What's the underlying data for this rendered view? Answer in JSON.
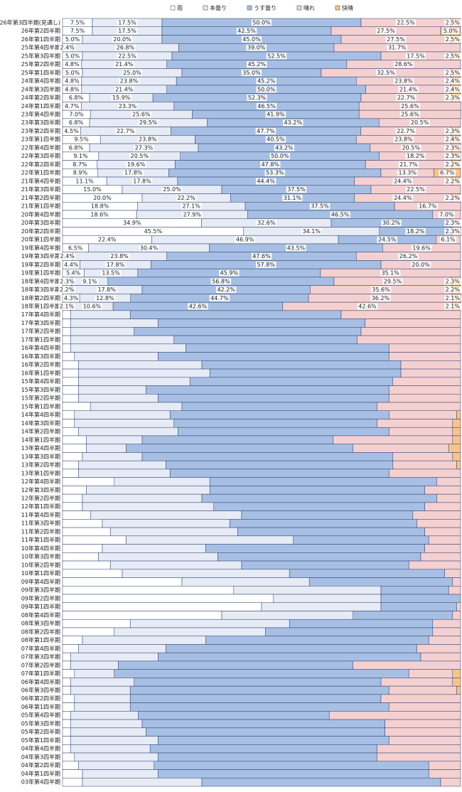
{
  "chart_data": {
    "type": "stacked-bar-horizontal",
    "categories": [
      "26年第3四半期(見通し)",
      "26年第2四半期",
      "26年第1四半期",
      "25年第4四半期",
      "25年第3四半期",
      "25年第2四半期",
      "25年第1四半期",
      "24年第4四半期",
      "24年第3四半期",
      "24年第2四半期",
      "24年第1四半期",
      "23年第4四半期",
      "23年第3四半期",
      "23年第2四半期",
      "23年第1四半期",
      "22年第4四半期",
      "22年第3四半期",
      "22年第2四半期",
      "22年第1四半期",
      "21年第4四半期",
      "21年第3四半期",
      "21年第2四半期",
      "21年第1四半期",
      "20年第4四半期",
      "20年第3四半期",
      "20年第2四半期",
      "20年第1四半期",
      "19年第4四半期",
      "19年第3四半期",
      "19年第2四半期",
      "19年第1四半期",
      "18年第4四半期",
      "18年第3四半期",
      "18年第2四半期",
      "18年第1四半期",
      "17年第4四半期",
      "17年第3四半期",
      "17年第2四半期",
      "17年第1四半期",
      "16年第4四半期",
      "16年第3四半期",
      "16年第2四半期",
      "16年第1四半期",
      "15年第4四半期",
      "15年第3四半期",
      "15年第2四半期",
      "15年第1四半期",
      "14年第4四半期",
      "14年第3四半期",
      "14年第2四半期",
      "14年第1四半期",
      "13年第4四半期",
      "13年第3四半期",
      "13年第2四半期",
      "13年第1四半期",
      "12年第4四半期",
      "12年第3四半期",
      "12年第2四半期",
      "12年第1四半期",
      "11年第4四半期",
      "11年第3四半期",
      "11年第2四半期",
      "11年第1四半期",
      "10年第4四半期",
      "10年第3四半期",
      "10年第2四半期",
      "10年第1四半期",
      "09年第4四半期",
      "09年第3四半期",
      "09年第2四半期",
      "09年第1四半期",
      "08年第4四半期",
      "08年第3四半期",
      "08年第2四半期",
      "08年第1四半期",
      "07年第4四半期",
      "07年第3四半期",
      "07年第2四半期",
      "07年第1四半期",
      "06年第4四半期",
      "06年第3四半期",
      "06年第2四半期",
      "06年第1四半期",
      "05年第4四半期",
      "05年第3四半期",
      "05年第2四半期",
      "05年第1四半期",
      "04年第4四半期",
      "04年第3四半期",
      "04年第2四半期",
      "04年第1四半期",
      "03年第4四半期"
    ],
    "xlim": [
      0,
      100
    ],
    "legend": "top",
    "series": [
      {
        "name": "雨",
        "color": "#ffffff",
        "values": [
          7.5,
          7.5,
          5.0,
          2.4,
          5.0,
          4.8,
          5.0,
          4.8,
          4.8,
          6.8,
          4.7,
          7.0,
          6.8,
          4.5,
          9.5,
          6.8,
          9.1,
          8.7,
          8.9,
          11.1,
          15.0,
          20.0,
          18.8,
          18.6,
          34.9,
          45.5,
          22.4,
          6.5,
          2.4,
          4.4,
          5.4,
          2.3,
          2.2,
          4.3,
          2.1,
          2,
          2,
          2,
          2,
          2,
          3,
          4,
          4,
          4,
          4,
          4,
          7,
          3,
          3,
          4,
          6,
          6,
          5,
          4,
          4,
          13,
          6,
          5,
          5,
          7,
          10,
          12,
          16,
          10,
          9,
          12,
          15,
          30,
          43,
          53,
          50,
          40,
          17,
          13,
          5,
          4,
          2,
          2,
          3,
          2,
          2,
          3,
          3,
          2,
          2,
          2,
          2,
          2,
          3,
          4,
          5,
          5
        ],
        "value_labels": [
          "7.5%",
          "7.5%",
          "5.0%",
          "2.4%",
          "5.0%",
          "4.8%",
          "5.0%",
          "4.8%",
          "4.8%",
          "6.8%",
          "4.7%",
          "7.0%",
          "6.8%",
          "4.5%",
          "9.5%",
          "6.8%",
          "9.1%",
          "8.7%",
          "8.9%",
          "11.1%",
          "15.0%",
          "20.0%",
          "18.8%",
          "18.6%",
          "34.9%",
          "45.5%",
          "22.4%",
          "6.5%",
          "2.4%",
          "4.4%",
          "5.4%",
          "2.3%",
          "2.2%",
          "4.3%",
          "2.1%",
          null,
          null,
          null,
          null,
          null,
          null,
          null,
          null,
          null,
          null,
          null,
          null,
          null,
          null,
          null,
          null,
          null,
          null,
          null,
          null,
          null,
          null,
          null,
          null,
          null,
          null,
          null,
          null,
          null,
          null,
          null,
          null,
          null,
          null,
          null,
          null,
          null,
          null,
          null,
          null,
          null,
          null,
          null,
          null,
          null,
          null,
          null,
          null,
          null,
          null,
          null,
          null,
          null,
          null,
          null,
          null,
          null
        ]
      },
      {
        "name": "本曇り",
        "color": "#e6ebf5",
        "values": [
          17.5,
          17.5,
          20.0,
          26.8,
          22.5,
          21.4,
          25.0,
          23.8,
          21.4,
          15.9,
          23.3,
          25.6,
          29.5,
          22.7,
          23.8,
          27.3,
          20.5,
          19.6,
          17.8,
          17.8,
          25.0,
          22.2,
          27.1,
          27.9,
          32.6,
          34.1,
          46.9,
          30.4,
          23.8,
          17.8,
          13.5,
          9.1,
          17.8,
          12.8,
          10.6,
          15,
          22,
          16,
          26,
          29,
          21,
          31,
          33,
          28,
          17,
          20,
          23,
          24,
          25,
          25,
          14,
          10,
          15,
          22,
          23,
          24,
          31,
          30,
          33,
          38,
          32,
          32,
          42,
          26,
          30,
          33,
          42,
          32,
          37,
          27,
          30,
          33,
          40,
          38,
          31,
          22,
          22,
          12,
          10,
          16,
          15,
          14,
          14,
          17,
          18,
          19,
          22,
          20,
          21,
          19,
          19,
          30
        ],
        "value_labels": [
          "17.5%",
          "17.5%",
          "20.0%",
          "26.8%",
          "22.5%",
          "21.4%",
          "25.0%",
          "23.8%",
          "21.4%",
          "15.9%",
          "23.3%",
          "25.6%",
          "29.5%",
          "22.7%",
          "23.8%",
          "27.3%",
          "20.5%",
          "19.6%",
          "17.8%",
          "17.8%",
          "25.0%",
          "22.2%",
          "27.1%",
          "27.9%",
          "32.6%",
          "34.1%",
          "46.9%",
          "30.4%",
          "23.8%",
          "17.8%",
          "13.5%",
          "9.1%",
          "17.8%",
          "12.8%",
          "10.6%",
          null,
          null,
          null,
          null,
          null,
          null,
          null,
          null,
          null,
          null,
          null,
          null,
          null,
          null,
          null,
          null,
          null,
          null,
          null,
          null,
          null,
          null,
          null,
          null,
          null,
          null,
          null,
          null,
          null,
          null,
          null,
          null,
          null,
          null,
          null,
          null,
          null,
          null,
          null,
          null,
          null,
          null,
          null,
          null,
          null,
          null,
          null,
          null,
          null,
          null,
          null,
          null,
          null,
          null,
          null,
          null,
          null
        ]
      },
      {
        "name": "うす曇り",
        "color": "#a7bfe3",
        "values": [
          50.0,
          42.5,
          45.0,
          39.0,
          52.5,
          45.2,
          35.0,
          45.2,
          50.0,
          52.3,
          46.5,
          41.9,
          43.2,
          47.7,
          40.5,
          43.2,
          50.0,
          47.8,
          53.3,
          44.4,
          37.5,
          31.1,
          37.5,
          46.5,
          30.2,
          18.2,
          24.5,
          43.5,
          47.6,
          57.8,
          45.9,
          56.8,
          42.2,
          44.7,
          42.6,
          53,
          52,
          57,
          46,
          51,
          58,
          50,
          48,
          51,
          61,
          58,
          49,
          55,
          51,
          53,
          48,
          57,
          63,
          57,
          55,
          57,
          54,
          59,
          53,
          43,
          47,
          47,
          34,
          55,
          51,
          42,
          39,
          36,
          17,
          20,
          19,
          25,
          36,
          42,
          56,
          63,
          66,
          59,
          74,
          62,
          65,
          63,
          65,
          48,
          61,
          60,
          58,
          57,
          55,
          69,
          68,
          60
        ],
        "value_labels": [
          "50.0%",
          "42.5%",
          "45.0%",
          "39.0%",
          "52.5%",
          "45.2%",
          "35.0%",
          "45.2%",
          "50.0%",
          "52.3%",
          "46.5%",
          "41.9%",
          "43.2%",
          "47.7%",
          "40.5%",
          "43.2%",
          "50.0%",
          "47.8%",
          "53.3%",
          "44.4%",
          "37.5%",
          "31.1%",
          "37.5%",
          "46.5%",
          "30.2%",
          "18.2%",
          "24.5%",
          "43.5%",
          "47.6%",
          "57.8%",
          "45.9%",
          "56.8%",
          "42.2%",
          "44.7%",
          "42.6%",
          null,
          null,
          null,
          null,
          null,
          null,
          null,
          null,
          null,
          null,
          null,
          null,
          null,
          null,
          null,
          null,
          null,
          null,
          null,
          null,
          null,
          null,
          null,
          null,
          null,
          null,
          null,
          null,
          null,
          null,
          null,
          null,
          null,
          null,
          null,
          null,
          null,
          null,
          null,
          null,
          null,
          null,
          null,
          null,
          null,
          null,
          null,
          null,
          null,
          null,
          null,
          null,
          null,
          null,
          null,
          null,
          null
        ]
      },
      {
        "name": "晴れ",
        "color": "#f5d0d0",
        "values": [
          22.5,
          27.5,
          27.5,
          31.7,
          17.5,
          28.6,
          32.5,
          23.8,
          21.4,
          22.7,
          25.6,
          25.6,
          20.5,
          22.7,
          23.8,
          20.5,
          18.2,
          21.7,
          13.3,
          24.4,
          22.5,
          24.4,
          16.7,
          7.0,
          2.3,
          2.3,
          6.1,
          19.6,
          26.2,
          20.0,
          35.1,
          29.5,
          35.6,
          36.2,
          42.6,
          30,
          24,
          25,
          26,
          18,
          18,
          15,
          15,
          17,
          18,
          18,
          21,
          17,
          19,
          16,
          30,
          24,
          15,
          16,
          18,
          6,
          9,
          6,
          9,
          12,
          11,
          9,
          8,
          9,
          10,
          13,
          4,
          2,
          3,
          0,
          1,
          2,
          7,
          7,
          8,
          11,
          10,
          27,
          11,
          18,
          17,
          20,
          18,
          33,
          19,
          19,
          18,
          21,
          21,
          8,
          8,
          5
        ],
        "value_labels": [
          "22.5%",
          "27.5%",
          "27.5%",
          "31.7%",
          "17.5%",
          "28.6%",
          "32.5%",
          "23.8%",
          "21.4%",
          "22.7%",
          "25.6%",
          "25.6%",
          "20.5%",
          "22.7%",
          "23.8%",
          "20.5%",
          "18.2%",
          "21.7%",
          "13.3%",
          "24.4%",
          "22.5%",
          "24.4%",
          "16.7%",
          "7.0%",
          "2.3%",
          "2.3%",
          "6.1%",
          "19.6%",
          "26.2%",
          "20.0%",
          "35.1%",
          "29.5%",
          "35.6%",
          "36.2%",
          "42.6%",
          null,
          null,
          null,
          null,
          null,
          null,
          null,
          null,
          null,
          null,
          null,
          null,
          null,
          null,
          null,
          null,
          null,
          null,
          null,
          null,
          null,
          null,
          null,
          null,
          null,
          null,
          null,
          null,
          null,
          null,
          null,
          null,
          null,
          null,
          null,
          null,
          null,
          null,
          null,
          null,
          null,
          null,
          null,
          null,
          null,
          null,
          null,
          null,
          null,
          null,
          null,
          null,
          null,
          null,
          null,
          null,
          null
        ]
      },
      {
        "name": "快晴",
        "color": "#f8c48a",
        "values": [
          2.5,
          5.0,
          2.5,
          0,
          2.5,
          0,
          2.5,
          2.4,
          2.4,
          2.3,
          0,
          0,
          0,
          2.3,
          2.4,
          2.3,
          2.3,
          2.2,
          6.7,
          2.2,
          0,
          2.2,
          0,
          0,
          0,
          0,
          0,
          0,
          0,
          0,
          0,
          2.3,
          2.2,
          2.1,
          2.1,
          0,
          0,
          0,
          0,
          0,
          0,
          0,
          0,
          0,
          0,
          0,
          0,
          1,
          2,
          2,
          2,
          3,
          2,
          1,
          0,
          0,
          0,
          0,
          0,
          0,
          0,
          0,
          0,
          0,
          0,
          0,
          0,
          0,
          0,
          0,
          0,
          0,
          0,
          0,
          0,
          0,
          0,
          0,
          2,
          2,
          1,
          0,
          0,
          0,
          0,
          0,
          0,
          0,
          0,
          0,
          0,
          0
        ],
        "value_labels": [
          "2.5%",
          "5.0%",
          "2.5%",
          null,
          "2.5%",
          null,
          "2.5%",
          "2.4%",
          "2.4%",
          "2.3%",
          null,
          null,
          null,
          "2.3%",
          "2.4%",
          "2.3%",
          "2.3%",
          "2.2%",
          "6.7%",
          "2.2%",
          null,
          "2.2%",
          null,
          null,
          null,
          null,
          null,
          null,
          null,
          null,
          null,
          "2.3%",
          "2.2%",
          "2.1%",
          "2.1%",
          null,
          null,
          null,
          null,
          null,
          null,
          null,
          null,
          null,
          null,
          null,
          null,
          null,
          null,
          null,
          null,
          null,
          null,
          null,
          null,
          null,
          null,
          null,
          null,
          null,
          null,
          null,
          null,
          null,
          null,
          null,
          null,
          null,
          null,
          null,
          null,
          null,
          null,
          null,
          null,
          null,
          null,
          null,
          null,
          null,
          null,
          null,
          null,
          null,
          null,
          null,
          null,
          null,
          null,
          null,
          null,
          null
        ]
      }
    ]
  }
}
